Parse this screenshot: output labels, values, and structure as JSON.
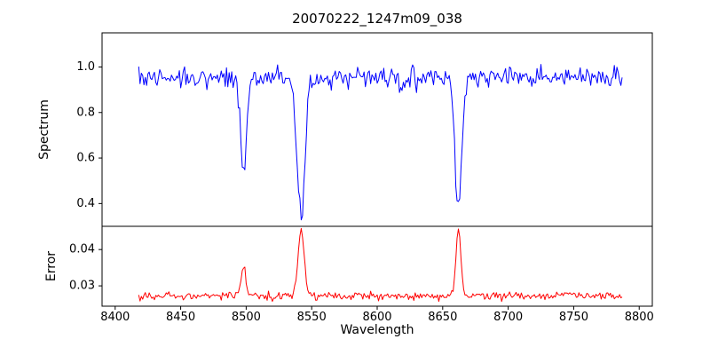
{
  "chart_data": {
    "type": "line",
    "title": "20070222_1247m09_038",
    "xlabel": "Wavelength",
    "xlim": [
      8390,
      8810
    ],
    "xticks": [
      8400,
      8450,
      8500,
      8550,
      8600,
      8650,
      8700,
      8750,
      8800
    ],
    "xtick_labels": [
      "8400",
      "8450",
      "8500",
      "8550",
      "8600",
      "8650",
      "8700",
      "8750",
      "8800"
    ],
    "x_axis_shared": true,
    "grid": false,
    "legend": "none",
    "panels": [
      {
        "id": "spectrum",
        "ylabel": "Spectrum",
        "ylim": [
          0.3,
          1.15
        ],
        "yticks": [
          0.4,
          0.6,
          0.8,
          1.0
        ],
        "ytick_labels": [
          "0.4",
          "0.6",
          "0.8",
          "1.0"
        ],
        "color": "#0000ff",
        "series": {
          "name": "spectrum",
          "seed": 42,
          "x_start": 8418,
          "x_end": 8787,
          "step": 1.0,
          "baseline": 0.952,
          "noise_sigma": 0.023,
          "features": [
            {
              "label": "absorption-line",
              "center": 8498,
              "amplitude": -0.42,
              "sigma": 2.2,
              "min_value": 0.53
            },
            {
              "label": "absorption-line",
              "center": 8542,
              "amplitude": -0.6,
              "sigma": 3.0,
              "min_value": 0.37
            },
            {
              "label": "absorption-line",
              "center": 8662,
              "amplitude": -0.58,
              "sigma": 2.6,
              "min_value": 0.38
            }
          ]
        }
      },
      {
        "id": "error",
        "ylabel": "Error",
        "ylim": [
          0.0244,
          0.0464
        ],
        "yticks": [
          0.03,
          0.04
        ],
        "ytick_labels": [
          "0.03",
          "0.04"
        ],
        "color": "#ff0000",
        "series": {
          "name": "error",
          "seed": 7,
          "x_start": 8418,
          "x_end": 8787,
          "step": 1.0,
          "baseline": 0.0272,
          "noise_sigma": 0.00055,
          "features": [
            {
              "label": "error-peak",
              "center": 8498,
              "amplitude": 0.0075,
              "sigma": 1.8,
              "max_value": 0.035
            },
            {
              "label": "error-peak",
              "center": 8542,
              "amplitude": 0.0178,
              "sigma": 2.4,
              "max_value": 0.045
            },
            {
              "label": "error-peak",
              "center": 8662,
              "amplitude": 0.0182,
              "sigma": 1.9,
              "max_value": 0.045
            }
          ]
        }
      }
    ]
  }
}
